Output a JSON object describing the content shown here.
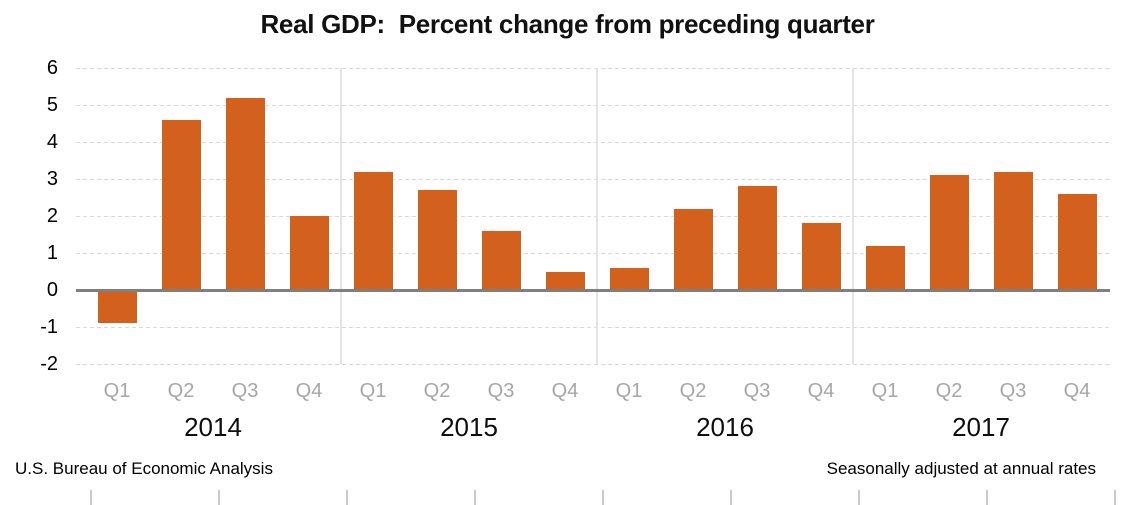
{
  "title": "Real GDP:  Percent change from preceding quarter",
  "footer": {
    "left": "U.S. Bureau of Economic Analysis",
    "right": "Seasonally adjusted at annual rates"
  },
  "chart_data": {
    "type": "bar",
    "title": "Real GDP:  Percent change from preceding quarter",
    "xlabel": "",
    "ylabel": "",
    "ylim": [
      -2,
      6
    ],
    "yticks": [
      6,
      5,
      4,
      3,
      2,
      1,
      0,
      -1,
      -2
    ],
    "grid": true,
    "legend": false,
    "bar_color": "#d4601e",
    "gridline_color": "#d9d9d9",
    "zero_line_color": "#7f7f7f",
    "quarter_label_color": "#a6a6a6",
    "categories": [
      "Q1",
      "Q2",
      "Q3",
      "Q4",
      "Q1",
      "Q2",
      "Q3",
      "Q4",
      "Q1",
      "Q2",
      "Q3",
      "Q4",
      "Q1",
      "Q2",
      "Q3",
      "Q4"
    ],
    "groups": [
      {
        "year": "2014",
        "quarters": [
          "Q1",
          "Q2",
          "Q3",
          "Q4"
        ],
        "values": [
          -0.9,
          4.6,
          5.2,
          2.0
        ]
      },
      {
        "year": "2015",
        "quarters": [
          "Q1",
          "Q2",
          "Q3",
          "Q4"
        ],
        "values": [
          3.2,
          2.7,
          1.6,
          0.5
        ]
      },
      {
        "year": "2016",
        "quarters": [
          "Q1",
          "Q2",
          "Q3",
          "Q4"
        ],
        "values": [
          0.6,
          2.2,
          2.8,
          1.8
        ]
      },
      {
        "year": "2017",
        "quarters": [
          "Q1",
          "Q2",
          "Q3",
          "Q4"
        ],
        "values": [
          1.2,
          3.1,
          3.2,
          2.6
        ]
      }
    ],
    "footnote_left": "U.S. Bureau of Economic Analysis",
    "footnote_right": "Seasonally adjusted at annual rates"
  }
}
